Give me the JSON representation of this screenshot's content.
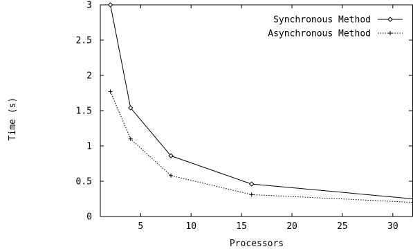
{
  "chart_data": {
    "type": "line",
    "title": "",
    "xlabel": "Processors",
    "ylabel": "Time (s)",
    "xlim": [
      1,
      32
    ],
    "ylim": [
      0,
      3
    ],
    "xticks": [
      5,
      10,
      15,
      20,
      25,
      30
    ],
    "yticks": [
      0,
      0.5,
      1,
      1.5,
      2,
      2.5,
      3
    ],
    "xtick_labels": [
      "5",
      "10",
      "15",
      "20",
      "25",
      "30"
    ],
    "ytick_labels": [
      "0",
      "0.5",
      "1",
      "1.5",
      "2",
      "2.5",
      "3"
    ],
    "grid": false,
    "legend_position": "top-right",
    "series": [
      {
        "name": "Synchronous Method",
        "line_style": "solid",
        "marker": "diamond",
        "color": "#000000",
        "x": [
          2,
          4,
          8,
          16,
          32
        ],
        "y": [
          3.0,
          1.54,
          0.86,
          0.46,
          0.25
        ]
      },
      {
        "name": "Asynchronous Method",
        "line_style": "dotted",
        "marker": "plus",
        "color": "#000000",
        "x": [
          2,
          4,
          8,
          16,
          32
        ],
        "y": [
          1.77,
          1.1,
          0.58,
          0.31,
          0.2
        ]
      }
    ]
  }
}
